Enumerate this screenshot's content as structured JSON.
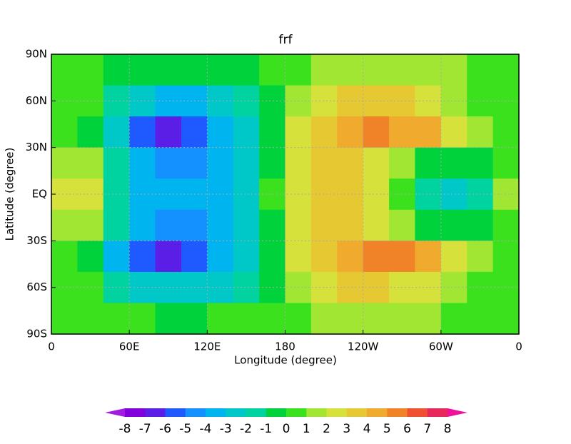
{
  "chart_data": {
    "type": "contourf",
    "title": "frf",
    "x_label": "Longitude (degree)",
    "y_label": "Latitude (degree)",
    "x": [
      10,
      30,
      50,
      70,
      90,
      110,
      130,
      150,
      170,
      190,
      210,
      230,
      250,
      270,
      290,
      310,
      330,
      350
    ],
    "y": [
      80,
      60,
      40,
      20,
      0,
      -20,
      -40,
      -60,
      -80
    ],
    "z": [
      [
        0.5,
        0.5,
        -0.5,
        -0.5,
        -0.5,
        -0.5,
        -0.5,
        -0.5,
        0.3,
        0.8,
        1.5,
        1.8,
        1.8,
        1.5,
        1.5,
        1,
        0.8,
        0.5
      ],
      [
        0.5,
        0,
        -1.5,
        -3,
        -3.5,
        -3.2,
        -2.8,
        -2,
        -0.5,
        1.5,
        2.5,
        3,
        3.2,
        3,
        2.5,
        1.5,
        0.8,
        0.5
      ],
      [
        0.5,
        -1,
        -3,
        -5.5,
        -6.5,
        -5.5,
        -4,
        -2.5,
        -1,
        2,
        3.5,
        4.5,
        5,
        4.8,
        4,
        2.5,
        1,
        0.5
      ],
      [
        1.5,
        1,
        -2,
        -4,
        -4.5,
        -4.5,
        -4,
        -2.5,
        -0.5,
        2.5,
        3.5,
        3.5,
        2.5,
        1,
        -0.5,
        -1,
        -0.5,
        0.8
      ],
      [
        2.5,
        2,
        -1.5,
        -3.5,
        -4,
        -4,
        -3.5,
        -2.5,
        0,
        2.8,
        3,
        3,
        2,
        0,
        -2,
        -2.2,
        -1.5,
        1.5
      ],
      [
        1.5,
        1,
        -2,
        -4,
        -4.5,
        -4.5,
        -4,
        -2.5,
        -0.5,
        2.5,
        3.5,
        3.5,
        2.5,
        1,
        -0.5,
        -1,
        -0.5,
        0.8
      ],
      [
        0.5,
        -1,
        -4,
        -5.5,
        -6.2,
        -5.5,
        -4,
        -2.5,
        -1,
        2,
        3.5,
        4.5,
        5.2,
        5,
        4,
        2.5,
        1,
        0.5
      ],
      [
        0.5,
        0,
        -1.5,
        -2.5,
        -3,
        -3,
        -2.5,
        -1.5,
        -0.5,
        1.5,
        2.5,
        3,
        3,
        2.8,
        2.2,
        1.5,
        0.8,
        0.5
      ],
      [
        0.5,
        0.5,
        0.5,
        0,
        -0.5,
        -0.5,
        0,
        0,
        0.3,
        0.8,
        1.5,
        1.5,
        1.5,
        1.2,
        1,
        0.8,
        0.5,
        0.5
      ]
    ],
    "xlim": [
      0,
      360
    ],
    "ylim": [
      -90,
      90
    ],
    "xticks": [
      0,
      {
        "value": 60,
        "label": "60E"
      },
      {
        "value": 120,
        "label": "120E"
      },
      180,
      {
        "value": 240,
        "label": "120W"
      },
      {
        "value": 300,
        "label": "60W"
      },
      {
        "value": 360,
        "label": "0"
      }
    ],
    "yticks": [
      {
        "value": -90,
        "label": "90S"
      },
      {
        "value": -60,
        "label": "60S"
      },
      {
        "value": -30,
        "label": "30S"
      },
      {
        "value": 0,
        "label": "EQ"
      },
      {
        "value": 30,
        "label": "30N"
      },
      {
        "value": 60,
        "label": "60N"
      },
      {
        "value": 90,
        "label": "90N"
      }
    ],
    "grid": true,
    "levels": [
      -8,
      -7,
      -6,
      -5,
      -4,
      -3,
      -2,
      -1,
      0,
      1,
      2,
      3,
      4,
      5,
      6,
      7,
      8
    ],
    "colors": [
      "#a11ee0",
      "#8200dc",
      "#5a1ee6",
      "#1e5aff",
      "#1490ff",
      "#00b4f0",
      "#00c8c8",
      "#00d2a0",
      "#00d23c",
      "#3ce11e",
      "#a0e632",
      "#d7e13c",
      "#e6c832",
      "#f0aa2d",
      "#f08228",
      "#f05032",
      "#e6285a",
      "#f0119b"
    ]
  }
}
